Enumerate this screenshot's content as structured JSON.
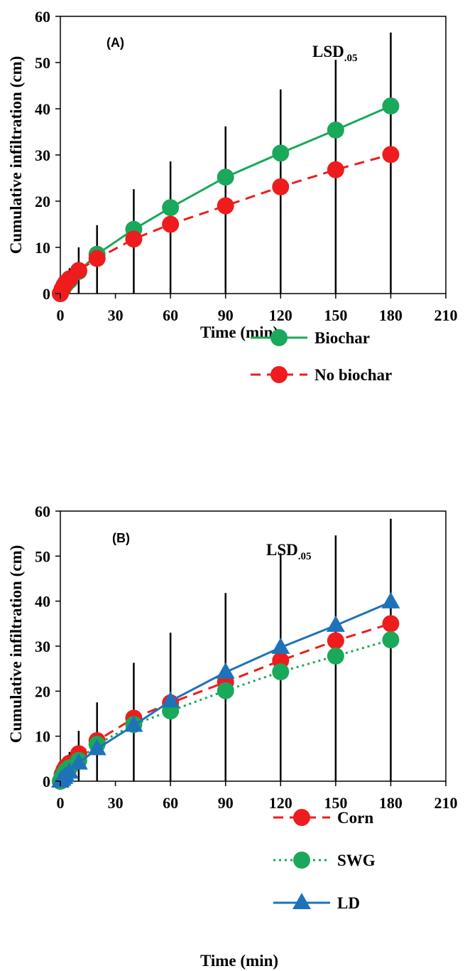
{
  "chart_data": [
    {
      "type": "line",
      "panel_label": "(A)",
      "lsd_label": "LSD",
      "lsd_subscript": ".05",
      "xlabel": "Time (min)",
      "ylabel": "Cumulative infiltration (cm)",
      "xlim": [
        0,
        210
      ],
      "ylim": [
        0,
        60
      ],
      "xticks": [
        0,
        30,
        60,
        90,
        120,
        150,
        180,
        210
      ],
      "yticks": [
        0,
        10,
        20,
        30,
        40,
        50,
        60
      ],
      "grid": false,
      "legend_position": "bottom-right",
      "series": [
        {
          "name": "Biochar",
          "color": "#1aa85a",
          "line_style": "solid",
          "marker": "circle",
          "x": [
            0,
            1,
            2,
            3,
            5,
            10,
            20,
            40,
            60,
            90,
            120,
            150,
            180
          ],
          "y": [
            0,
            0.8,
            1.5,
            2.0,
            2.8,
            4.8,
            8.5,
            13.9,
            18.6,
            25.2,
            30.4,
            35.4,
            40.6
          ]
        },
        {
          "name": "No biochar",
          "color": "#ee1c1c",
          "line_style": "dashed",
          "marker": "circle",
          "x": [
            0,
            1,
            2,
            3,
            5,
            10,
            20,
            40,
            60,
            90,
            120,
            150,
            180
          ],
          "y": [
            0,
            1.0,
            1.8,
            2.4,
            3.2,
            5.0,
            7.6,
            11.8,
            15.0,
            19.0,
            23.1,
            26.8,
            30.1
          ]
        }
      ],
      "lsd_bars": {
        "x": [
          3,
          5,
          10,
          20,
          40,
          60,
          90,
          120,
          150,
          180
        ],
        "y_top": [
          4.5,
          5.5,
          10.0,
          14.8,
          22.6,
          28.6,
          36.2,
          44.2,
          50.6,
          56.5
        ]
      }
    },
    {
      "type": "line",
      "panel_label": "(B)",
      "lsd_label": "LSD",
      "lsd_subscript": ".05",
      "xlabel": "Time (min)",
      "ylabel": "Cumulative infiltration (cm)",
      "xlim": [
        0,
        210
      ],
      "ylim": [
        0,
        60
      ],
      "xticks": [
        0,
        30,
        60,
        90,
        120,
        150,
        180,
        210
      ],
      "yticks": [
        0,
        10,
        20,
        30,
        40,
        50,
        60
      ],
      "grid": false,
      "legend_position": "bottom-right",
      "series": [
        {
          "name": "Corn",
          "color": "#ee1c1c",
          "line_style": "dashed",
          "marker": "circle",
          "x": [
            0,
            1,
            2,
            3,
            5,
            10,
            20,
            40,
            60,
            90,
            120,
            150,
            180
          ],
          "y": [
            0,
            1.5,
            2.5,
            3.2,
            4.0,
            6.1,
            9.0,
            14.0,
            17.4,
            22.0,
            26.8,
            31.2,
            35.0
          ]
        },
        {
          "name": "SWG",
          "color": "#1aa85a",
          "line_style": "dotted",
          "marker": "circle",
          "x": [
            0,
            1,
            2,
            3,
            5,
            10,
            20,
            40,
            60,
            90,
            120,
            150,
            180
          ],
          "y": [
            0,
            0.9,
            1.7,
            2.3,
            3.0,
            4.6,
            8.2,
            12.6,
            15.6,
            20.1,
            24.3,
            27.8,
            31.4
          ]
        },
        {
          "name": "LD",
          "color": "#1f72b8",
          "line_style": "solid",
          "marker": "triangle",
          "x": [
            0,
            1,
            2,
            3,
            5,
            10,
            20,
            40,
            60,
            90,
            120,
            150,
            180
          ],
          "y": [
            0,
            0.4,
            0.8,
            1.2,
            2.0,
            4.0,
            7.2,
            12.4,
            17.8,
            24.2,
            29.7,
            34.6,
            39.8
          ]
        }
      ],
      "lsd_bars": {
        "x": [
          3,
          5,
          10,
          20,
          40,
          60,
          90,
          120,
          150,
          180
        ],
        "y_top": [
          5.0,
          6.5,
          11.2,
          17.5,
          26.3,
          33.0,
          41.8,
          50.6,
          54.6,
          58.3
        ]
      }
    }
  ]
}
